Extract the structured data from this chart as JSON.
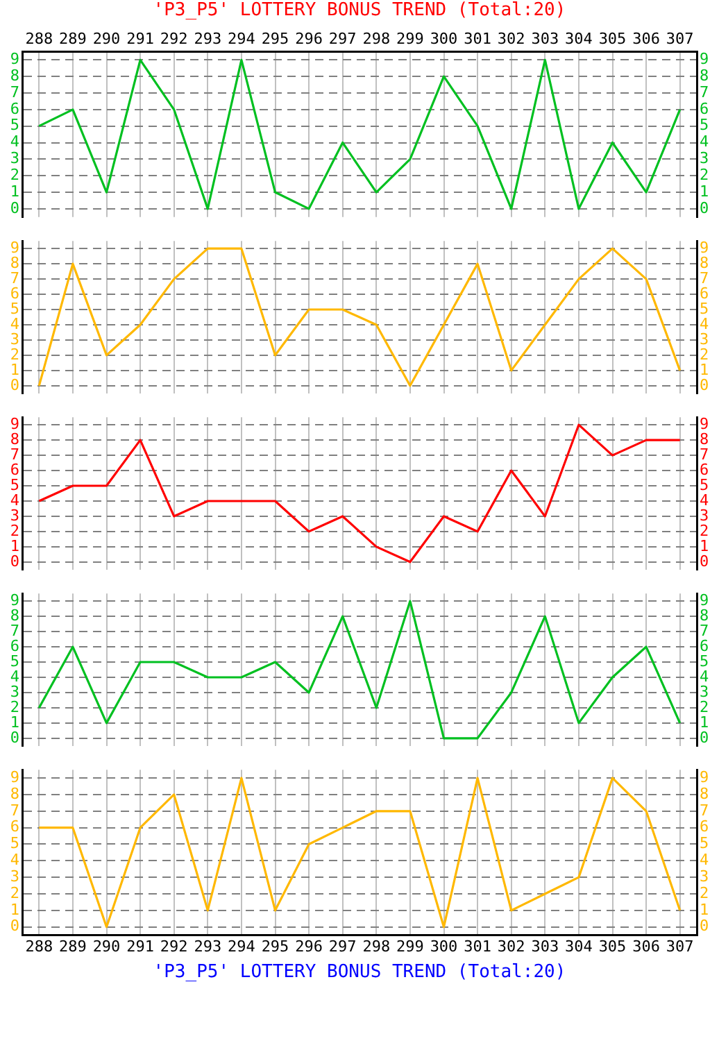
{
  "chart_data": [
    {
      "type": "line",
      "title": "'P3_P5' LOTTERY BONUS TREND (Total:20)",
      "categories": [
        "288",
        "289",
        "290",
        "291",
        "292",
        "293",
        "294",
        "295",
        "296",
        "297",
        "298",
        "299",
        "300",
        "301",
        "302",
        "303",
        "304",
        "305",
        "306",
        "307"
      ],
      "series": [
        {
          "color": "#00c020",
          "values": [
            5,
            6,
            1,
            9,
            6,
            0,
            9,
            1,
            0,
            4,
            1,
            3,
            8,
            5,
            0,
            9,
            0,
            4,
            1,
            6
          ]
        }
      ],
      "ylim": [
        -0.5,
        9.5
      ],
      "yticks": [
        0,
        1,
        2,
        3,
        4,
        5,
        6,
        7,
        8,
        9
      ],
      "y2lim": [
        -0.5,
        9.5
      ],
      "y2ticks": [
        0,
        1,
        2,
        3,
        4,
        5,
        6,
        7,
        8,
        9
      ],
      "grid": true,
      "legend": false,
      "marker": "none"
    },
    {
      "type": "line",
      "categories": [
        "288",
        "289",
        "290",
        "291",
        "292",
        "293",
        "294",
        "295",
        "296",
        "297",
        "298",
        "299",
        "300",
        "301",
        "302",
        "303",
        "304",
        "305",
        "306",
        "307"
      ],
      "series": [
        {
          "color": "#ffb800",
          "values": [
            0,
            8,
            2,
            4,
            7,
            9,
            9,
            2,
            5,
            5,
            4,
            0,
            4,
            8,
            1,
            4,
            7,
            9,
            7,
            1
          ]
        }
      ],
      "ylim": [
        -0.5,
        9.5
      ],
      "yticks": [
        0,
        1,
        2,
        3,
        4,
        5,
        6,
        7,
        8,
        9
      ],
      "y2lim": [
        -0.5,
        9.5
      ],
      "y2ticks": [
        0,
        1,
        2,
        3,
        4,
        5,
        6,
        7,
        8,
        9
      ],
      "grid": true,
      "legend": false,
      "marker": "none",
      "tick_labels": "y"
    },
    {
      "type": "line",
      "categories": [
        "288",
        "289",
        "290",
        "291",
        "292",
        "293",
        "294",
        "295",
        "296",
        "297",
        "298",
        "299",
        "300",
        "301",
        "302",
        "303",
        "304",
        "305",
        "306",
        "307"
      ],
      "series": [
        {
          "color": "#ff0000",
          "values": [
            4,
            5,
            5,
            8,
            3,
            4,
            4,
            4,
            2,
            3,
            1,
            0,
            3,
            2,
            6,
            3,
            9,
            7,
            8,
            8
          ]
        }
      ],
      "ylim": [
        -0.5,
        9.5
      ],
      "yticks": [
        0,
        1,
        2,
        3,
        4,
        5,
        6,
        7,
        8,
        9
      ],
      "y2lim": [
        -0.5,
        9.5
      ],
      "y2ticks": [
        0,
        1,
        2,
        3,
        4,
        5,
        6,
        7,
        8,
        9
      ],
      "grid": true,
      "legend": false,
      "marker": "none",
      "tick_labels": "y"
    },
    {
      "type": "line",
      "categories": [
        "288",
        "289",
        "290",
        "291",
        "292",
        "293",
        "294",
        "295",
        "296",
        "297",
        "298",
        "299",
        "300",
        "301",
        "302",
        "303",
        "304",
        "305",
        "306",
        "307"
      ],
      "series": [
        {
          "color": "#00c020",
          "values": [
            2,
            6,
            1,
            5,
            5,
            4,
            4,
            5,
            3,
            8,
            2,
            9,
            0,
            0,
            3,
            8,
            1,
            4,
            6,
            1
          ]
        }
      ],
      "ylim": [
        -0.5,
        9.5
      ],
      "yticks": [
        0,
        1,
        2,
        3,
        4,
        5,
        6,
        7,
        8,
        9
      ],
      "y2lim": [
        -0.5,
        9.5
      ],
      "y2ticks": [
        0,
        1,
        2,
        3,
        4,
        5,
        6,
        7,
        8,
        9
      ],
      "grid": true,
      "legend": false,
      "marker": "none",
      "tick_labels": "y"
    },
    {
      "type": "line",
      "categories": [
        "288",
        "289",
        "290",
        "291",
        "292",
        "293",
        "294",
        "295",
        "296",
        "297",
        "298",
        "299",
        "300",
        "301",
        "302",
        "303",
        "304",
        "305",
        "306",
        "307"
      ],
      "series": [
        {
          "color": "#ffb800",
          "values": [
            6,
            6,
            0,
            6,
            8,
            1,
            9,
            1,
            5,
            6,
            7,
            7,
            0,
            9,
            1,
            2,
            3,
            9,
            7,
            1
          ]
        }
      ],
      "ylim": [
        -0.5,
        9.5
      ],
      "yticks": [
        0,
        1,
        2,
        3,
        4,
        5,
        6,
        7,
        8,
        9
      ],
      "y2lim": [
        -0.5,
        9.5
      ],
      "y2ticks": [
        0,
        1,
        2,
        3,
        4,
        5,
        6,
        7,
        8,
        9
      ],
      "grid": true,
      "legend": false,
      "marker": "none",
      "annotations": [
        "'P3_P5' LOTTERY BONUS TREND (Total:20)"
      ]
    }
  ]
}
